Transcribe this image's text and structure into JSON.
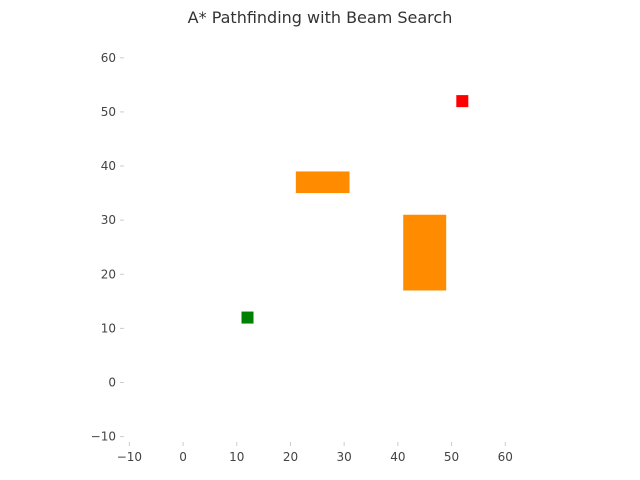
{
  "chart_data": {
    "type": "scatter",
    "title": "A* Pathfinding with Beam Search",
    "xlabel": "",
    "ylabel": "",
    "xlim": [
      -11,
      62
    ],
    "ylim": [
      -11,
      62
    ],
    "xticks": [
      -10,
      0,
      10,
      20,
      30,
      40,
      50,
      60
    ],
    "yticks": [
      -10,
      0,
      10,
      20,
      30,
      40,
      50,
      60
    ],
    "xtick_labels": [
      "−10",
      "0",
      "10",
      "20",
      "30",
      "40",
      "50",
      "60"
    ],
    "ytick_labels": [
      "−10",
      "0",
      "10",
      "20",
      "30",
      "40",
      "50",
      "60"
    ],
    "grid": false,
    "obstacles": [
      {
        "x0": 21,
        "x1": 31,
        "y0": 35,
        "y1": 39,
        "color": "#ff8c00"
      },
      {
        "x0": 41,
        "x1": 49,
        "y0": 17,
        "y1": 31,
        "color": "#ff8c00"
      }
    ],
    "markers": [
      {
        "role": "start",
        "x": 12,
        "y": 12,
        "color": "#008000"
      },
      {
        "role": "goal",
        "x": 52,
        "y": 52,
        "color": "#ff0000"
      }
    ]
  }
}
